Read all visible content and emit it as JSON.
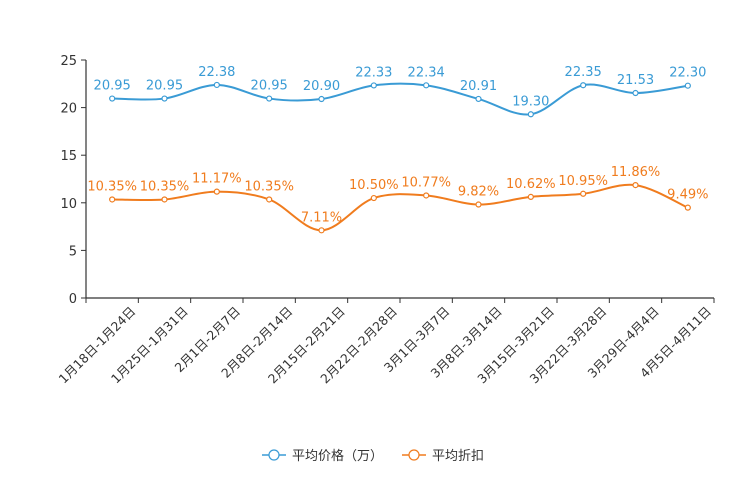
{
  "chart_data": {
    "type": "line",
    "categories": [
      "1月18日-1月24日",
      "1月25日-1月31日",
      "2月1日-2月7日",
      "2月8日-2月14日",
      "2月15日-2月21日",
      "2月22日-2月28日",
      "3月1日-3月7日",
      "3月8日-3月14日",
      "3月15日-3月21日",
      "3月22日-3月28日",
      "3月29日-4月4日",
      "4月5日-4月11日"
    ],
    "ylim": [
      0,
      25
    ],
    "yticks": [
      "0",
      "5",
      "10",
      "15",
      "20",
      "25"
    ],
    "series": [
      {
        "name": "平均价格（万）",
        "color": "#3a9bd5",
        "values": [
          20.95,
          20.95,
          22.38,
          20.95,
          20.9,
          22.33,
          22.34,
          20.91,
          19.3,
          22.35,
          21.53,
          22.3
        ],
        "labels": [
          "20.95",
          "20.95",
          "22.38",
          "20.95",
          "20.90",
          "22.33",
          "22.34",
          "20.91",
          "19.30",
          "22.35",
          "21.53",
          "22.30"
        ]
      },
      {
        "name": "平均折扣",
        "color": "#f07c1e",
        "values": [
          10.35,
          10.35,
          11.17,
          10.35,
          7.11,
          10.5,
          10.77,
          9.82,
          10.62,
          10.95,
          11.86,
          9.49
        ],
        "labels": [
          "10.35%",
          "10.35%",
          "11.17%",
          "10.35%",
          "7.11%",
          "10.50%",
          "10.77%",
          "9.82%",
          "10.62%",
          "10.95%",
          "11.86%",
          "9.49%"
        ]
      }
    ],
    "legend": {
      "position": "bottom-center",
      "items": [
        "平均价格（万）",
        "平均折扣"
      ]
    },
    "grid": false
  }
}
